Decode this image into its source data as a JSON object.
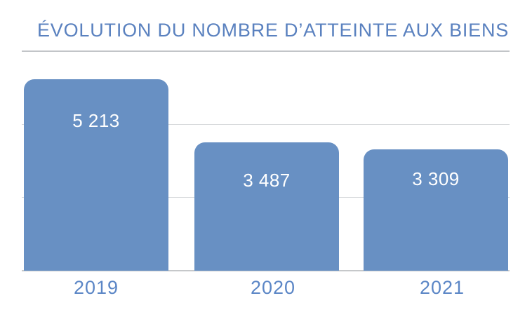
{
  "chart_data": {
    "type": "bar",
    "title": "ÉVOLUTION DU NOMBRE D’ATTEINTE AUX BIENS",
    "categories": [
      "2019",
      "2020",
      "2021"
    ],
    "values": [
      5213,
      3487,
      3309
    ],
    "value_labels": [
      "5 213",
      "3 487",
      "3 309"
    ],
    "xlabel": "",
    "ylabel": "",
    "ylim": [
      0,
      6000
    ],
    "gridline_values": [
      0,
      2000,
      4000,
      6000
    ],
    "grid": true,
    "legend_position": "none",
    "y_axis_tick_labels": [],
    "colors": {
      "bar_fill": "#6890c3",
      "value_label": "#ffffff",
      "category_label": "#5b86c6",
      "title": "#5a81bf",
      "gridline": "#d8dadc",
      "baseline": "#c6c8ca",
      "background": "#ffffff"
    }
  }
}
